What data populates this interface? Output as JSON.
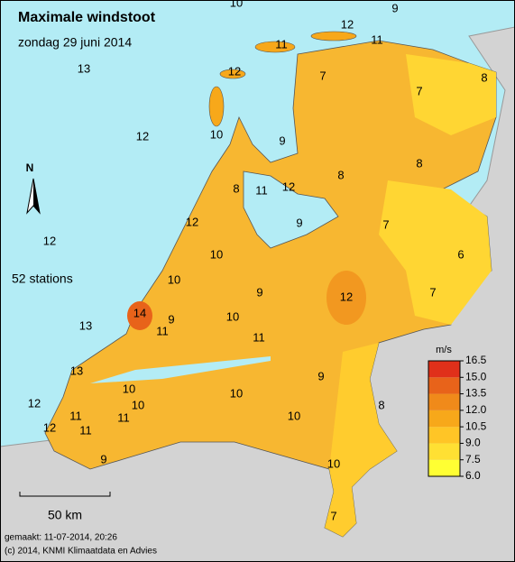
{
  "title": "Maximale windstoot",
  "subtitle": "zondag 29 juni 2014",
  "stations": "52 stations",
  "north": "N",
  "scale": "50 km",
  "made": "gemaakt: 11-07-2014, 20:26",
  "copyright": "(c) 2014, KNMI Klimaatdata en Advies",
  "values": [
    10,
    9,
    12,
    11,
    11,
    13,
    12,
    7,
    8,
    7,
    12,
    10,
    9,
    8,
    8,
    8,
    11,
    12,
    12,
    9,
    7,
    12,
    10,
    6,
    10,
    9,
    12,
    7,
    14,
    10,
    9,
    13,
    11,
    11,
    13,
    9,
    10,
    10,
    8,
    12,
    10,
    11,
    11,
    10,
    12,
    11,
    10,
    9,
    7
  ],
  "legend": {
    "unit": "m/s",
    "ticks": [
      {
        "value": 6,
        "label": "6.0"
      },
      {
        "value": 7.5,
        "label": "7.5"
      },
      {
        "value": 9,
        "label": "9.0"
      },
      {
        "value": 10.5,
        "label": "10.5"
      },
      {
        "value": 12,
        "label": "12.0"
      },
      {
        "value": 13.5,
        "label": "13.5"
      },
      {
        "value": 15,
        "label": "15.0"
      },
      {
        "value": 16.5,
        "label": "16.5"
      }
    ],
    "colors": [
      "#ffff33",
      "#ffe033",
      "#ffc526",
      "#f7a81a",
      "#f08a1a",
      "#e8631a",
      "#e0301a"
    ]
  }
}
